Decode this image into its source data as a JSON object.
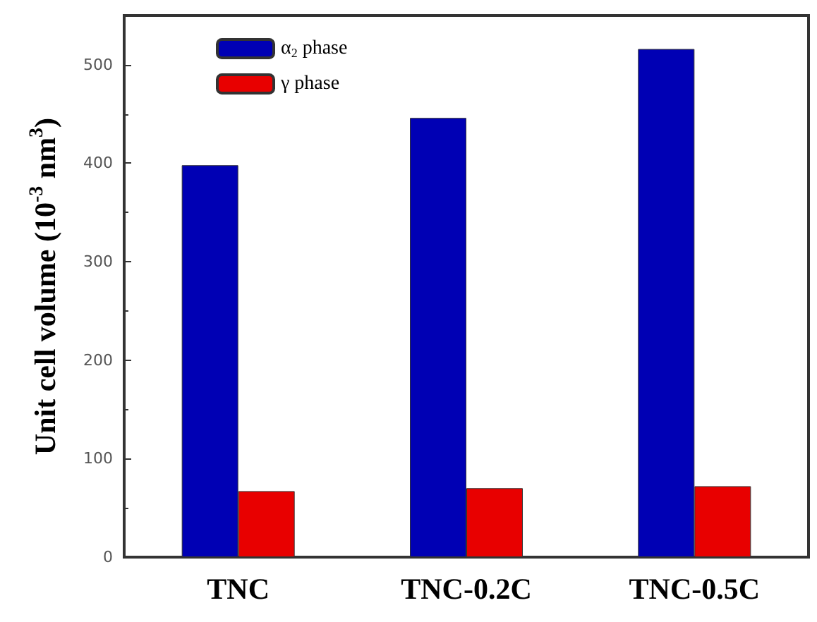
{
  "chart_data": {
    "type": "bar",
    "ylabel": "Unit cell volume (10$^{-3}$ nm$^{3}$)",
    "categories": [
      "TNC",
      "TNC-0.2C",
      "TNC-0.5C"
    ],
    "series": [
      {
        "name": "α$_{2}$ phase",
        "color": "#0000b4",
        "values": [
          398,
          446,
          516
        ]
      },
      {
        "name": "γ phase",
        "color": "#e80000",
        "values": [
          67,
          70,
          72
        ]
      }
    ],
    "ylim": [
      0,
      550
    ],
    "yticks": [
      0,
      100,
      200,
      300,
      400,
      500
    ],
    "legend": "top left"
  }
}
